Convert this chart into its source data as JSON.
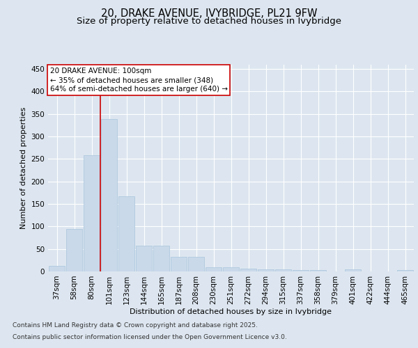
{
  "title_line1": "20, DRAKE AVENUE, IVYBRIDGE, PL21 9FW",
  "title_line2": "Size of property relative to detached houses in Ivybridge",
  "xlabel": "Distribution of detached houses by size in Ivybridge",
  "ylabel": "Number of detached properties",
  "categories": [
    "37sqm",
    "58sqm",
    "80sqm",
    "101sqm",
    "123sqm",
    "144sqm",
    "165sqm",
    "187sqm",
    "208sqm",
    "230sqm",
    "251sqm",
    "272sqm",
    "294sqm",
    "315sqm",
    "337sqm",
    "358sqm",
    "379sqm",
    "401sqm",
    "422sqm",
    "444sqm",
    "465sqm"
  ],
  "values": [
    13,
    94,
    258,
    338,
    167,
    57,
    57,
    33,
    33,
    10,
    10,
    6,
    5,
    5,
    3,
    3,
    0,
    4,
    0,
    0,
    3
  ],
  "bar_color": "#c9d9ea",
  "bar_edge_color": "#a8c4dc",
  "vline_color": "#cc0000",
  "vline_bar_index": 2,
  "annotation_box_text": "20 DRAKE AVENUE: 100sqm\n← 35% of detached houses are smaller (348)\n64% of semi-detached houses are larger (640) →",
  "annotation_box_color": "#cc0000",
  "annotation_bg": "#ffffff",
  "ylim": [
    0,
    460
  ],
  "yticks": [
    0,
    50,
    100,
    150,
    200,
    250,
    300,
    350,
    400,
    450
  ],
  "background_color": "#dde6f0",
  "plot_bg_color": "#dde6f0",
  "grid_color": "#ffffff",
  "footer_line1": "Contains HM Land Registry data © Crown copyright and database right 2025.",
  "footer_line2": "Contains public sector information licensed under the Open Government Licence v3.0.",
  "title_fontsize": 10.5,
  "subtitle_fontsize": 9.5,
  "axis_label_fontsize": 8,
  "tick_fontsize": 7.5,
  "annotation_fontsize": 7.5,
  "footer_fontsize": 6.5
}
